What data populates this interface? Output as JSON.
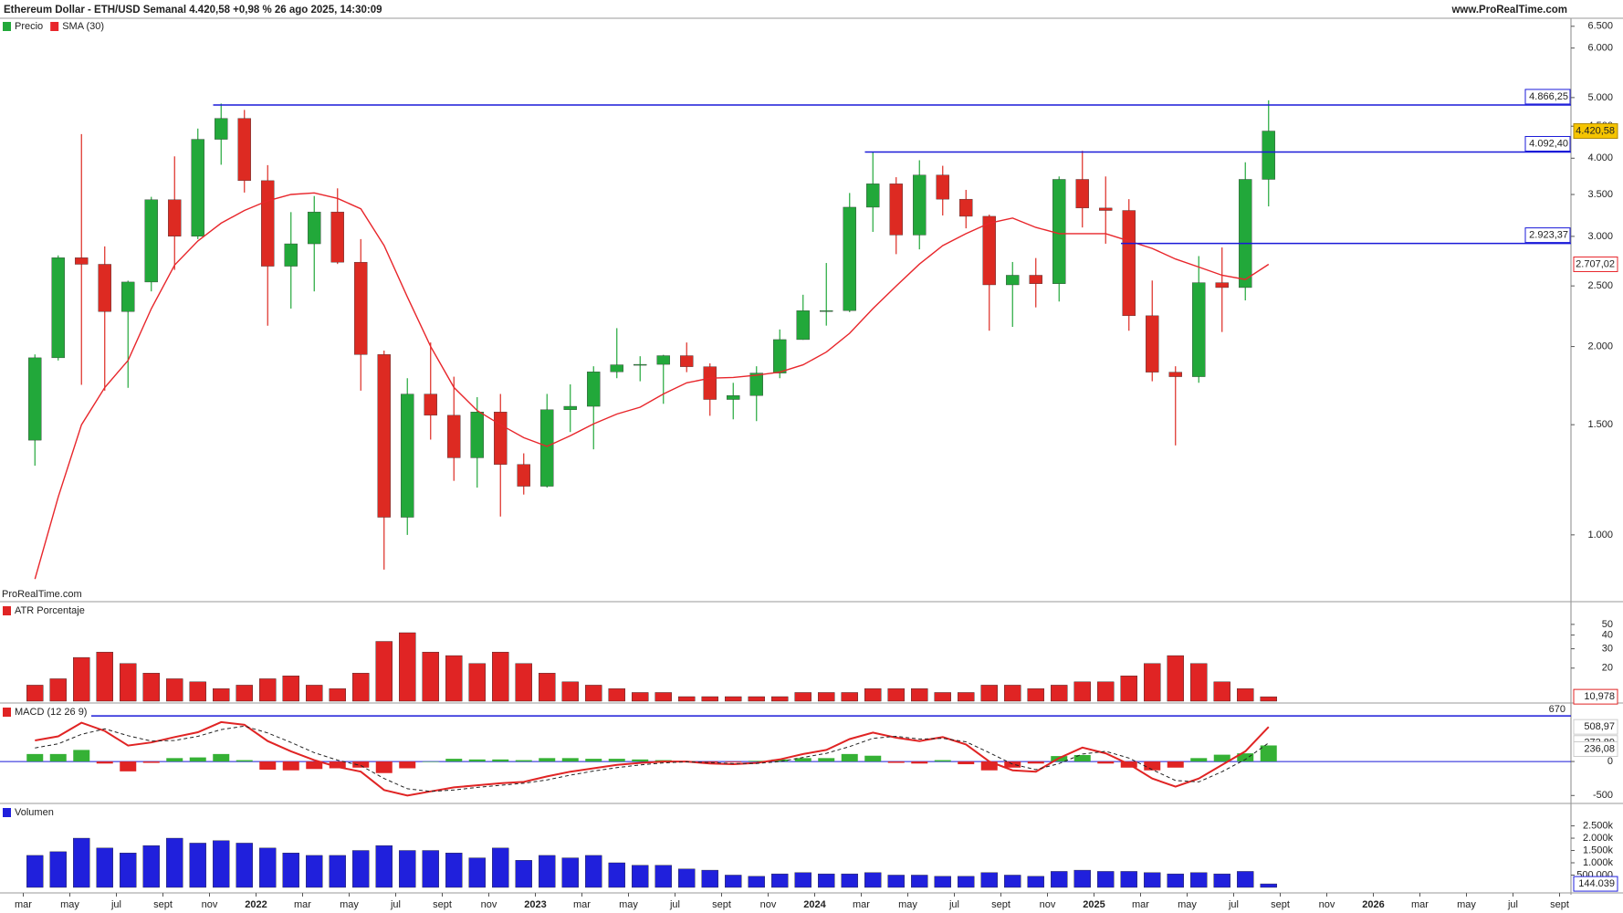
{
  "chart_data": [
    {
      "type": "candlestick",
      "title": "Ethereum Dollar - ETH/USD Semanal 4.420,58 +0,98 % 26 ago 2025, 14:30:09",
      "source": "www.ProRealTime.com",
      "watermark": "ProRealTime.com",
      "name": "Precio",
      "log_scale": true,
      "up_color": "#22a83a",
      "down_color": "#dd2a22",
      "categories": [
        "mar",
        null,
        "may",
        null,
        "jul",
        null,
        "sept",
        null,
        "nov",
        null,
        "2022",
        null,
        "mar",
        null,
        "may",
        null,
        "jul",
        null,
        "sept",
        null,
        "nov",
        null,
        "2023",
        null,
        "mar",
        null,
        "may",
        null,
        "jul",
        null,
        "sept",
        null,
        "nov",
        null,
        "2024",
        null,
        "mar",
        null,
        "may",
        null,
        "jul",
        null,
        "sept",
        null,
        "nov",
        null,
        "2025",
        null,
        "mar",
        null,
        "may",
        null,
        "jul",
        null,
        "sept",
        null,
        "nov",
        null,
        "2026",
        null,
        "mar",
        null,
        "may",
        null,
        "jul",
        null,
        "sept"
      ],
      "open": [
        1417,
        1919,
        2773,
        2707,
        2275,
        2536,
        3433,
        3001,
        4288,
        4631,
        3683,
        2688,
        2919,
        3282,
        2728,
        1942,
        1067,
        1679,
        1553,
        1328,
        1572,
        1296,
        1196,
        1585,
        1605,
        1822,
        1870,
        1873,
        1934,
        1857,
        1646,
        1670,
        1814,
        2052,
        2282,
        2283,
        3340,
        3640,
        3015,
        3760,
        3440,
        3230,
        2510,
        2600,
        2520,
        3700,
        3330,
        3300,
        2240,
        1820,
        1790,
        2530,
        2485,
        3700,
        null,
        null,
        null,
        null,
        null,
        null,
        null,
        null,
        null,
        null,
        null,
        null,
        null
      ],
      "high": [
        1943,
        2797,
        4372,
        2891,
        2549,
        3470,
        4027,
        4461,
        4891,
        4778,
        3900,
        3280,
        3480,
        3580,
        2970,
        1970,
        1780,
        2030,
        1790,
        1660,
        1680,
        1350,
        1680,
        1740,
        1860,
        2140,
        1930,
        1940,
        2030,
        1880,
        1750,
        1860,
        2130,
        2420,
        2720,
        3520,
        4090,
        3730,
        3970,
        3890,
        3560,
        3250,
        2730,
        2770,
        3740,
        4110,
        3740,
        3440,
        2550,
        1860,
        2790,
        2880,
        3940,
        4950,
        null,
        null,
        null,
        null,
        null,
        null,
        null,
        null,
        null,
        null,
        null,
        null,
        null
      ],
      "low": [
        1290,
        1900,
        1737,
        1700,
        1718,
        2450,
        2652,
        2970,
        3905,
        3525,
        2159,
        2300,
        2450,
        2710,
        1700,
        880,
        1000,
        1420,
        1220,
        1190,
        1070,
        1160,
        1190,
        1460,
        1370,
        1780,
        1760,
        1620,
        1820,
        1550,
        1530,
        1520,
        1780,
        2050,
        2160,
        2270,
        3050,
        2810,
        2860,
        3240,
        3090,
        2120,
        2150,
        2310,
        2360,
        3100,
        2920,
        2120,
        1760,
        1390,
        1750,
        2110,
        2370,
        3350,
        null,
        null,
        null,
        null,
        null,
        null,
        null,
        null,
        null,
        null,
        null,
        null,
        null
      ],
      "close": [
        1919,
        2773,
        2707,
        2275,
        2536,
        3433,
        3001,
        4288,
        4631,
        3683,
        2688,
        2919,
        3282,
        2728,
        1942,
        1067,
        1679,
        1553,
        1328,
        1572,
        1296,
        1196,
        1585,
        1605,
        1822,
        1870,
        1873,
        1934,
        1857,
        1646,
        1670,
        1814,
        2052,
        2282,
        2283,
        3340,
        3640,
        3015,
        3760,
        3440,
        3230,
        2510,
        2600,
        2520,
        3700,
        3330,
        3300,
        2240,
        1820,
        1790,
        2530,
        2485,
        3700,
        4420.58,
        null,
        null,
        null,
        null,
        null,
        null,
        null,
        null,
        null,
        null,
        null,
        null,
        null
      ],
      "last_label": "4.420,58",
      "last_label_color": "#f5c400",
      "overlay": {
        "name": "SMA (30)",
        "color": "#e8262b",
        "last_label": "2.707,02",
        "values": [
          850,
          1150,
          1500,
          1720,
          1900,
          2300,
          2700,
          2950,
          3150,
          3300,
          3420,
          3500,
          3520,
          3450,
          3320,
          2900,
          2400,
          2000,
          1720,
          1580,
          1500,
          1430,
          1385,
          1440,
          1505,
          1560,
          1600,
          1680,
          1750,
          1780,
          1785,
          1800,
          1820,
          1870,
          1960,
          2100,
          2300,
          2500,
          2710,
          2900,
          3030,
          3150,
          3210,
          3100,
          3030,
          3030,
          3030,
          2950,
          2870,
          2760,
          2680,
          2600,
          2560,
          2707.02,
          null,
          null,
          null,
          null,
          null,
          null,
          null,
          null,
          null,
          null,
          null,
          null,
          null
        ]
      },
      "levels": [
        {
          "value": 4866.25,
          "label": "4.866,25"
        },
        {
          "value": 4092.4,
          "label": "4.092,40"
        },
        {
          "value": 2923.37,
          "label": "2.923,37"
        }
      ],
      "level_color": "#1a1ad8",
      "ylim": [
        790,
        6650
      ],
      "yticks": [
        {
          "value": 6500,
          "label": "6.500"
        },
        {
          "value": 6000,
          "label": "6.000"
        },
        {
          "value": 5000,
          "label": "5.000"
        },
        {
          "value": 4500,
          "label": "4.500"
        },
        {
          "value": 4000,
          "label": "4.000"
        },
        {
          "value": 3500,
          "label": "3.500"
        },
        {
          "value": 3000,
          "label": "3.000"
        },
        {
          "value": 2500,
          "label": "2.500"
        },
        {
          "value": 2000,
          "label": "2.000"
        },
        {
          "value": 1500,
          "label": "1.500"
        },
        {
          "value": 1000,
          "label": "1.000"
        }
      ]
    },
    {
      "type": "bar",
      "title": "ATR Porcentaje",
      "log_scale": true,
      "color": "#e02424",
      "values": [
        14,
        16,
        25,
        28,
        22,
        18,
        16,
        15,
        13,
        14,
        16,
        17,
        14,
        13,
        18,
        35,
        42,
        28,
        26,
        22,
        28,
        22,
        18,
        15,
        14,
        13,
        12,
        12,
        11,
        11,
        11,
        11,
        11,
        12,
        12,
        12,
        13,
        13,
        13,
        12,
        12,
        14,
        14,
        13,
        14,
        15,
        15,
        17,
        22,
        26,
        22,
        15,
        13,
        10.978,
        null,
        null,
        null,
        null,
        null,
        null,
        null,
        null,
        null,
        null,
        null,
        null,
        null
      ],
      "last_label": "10,978",
      "ylim": [
        10,
        76
      ],
      "yticks": [
        50,
        40,
        30,
        20
      ]
    },
    {
      "type": "macd",
      "title": "MACD (12 26 9)",
      "baseline_color": "#1a1ad8",
      "levels": [
        670
      ],
      "level_color": "#1a1ad8",
      "series": [
        {
          "style": "histogram",
          "color": "#35b135",
          "negative_color": "#e02424",
          "last_label": "236,08",
          "values": [
            110,
            110,
            170,
            -30,
            -145,
            -20,
            50,
            60,
            110,
            20,
            -120,
            -130,
            -110,
            -100,
            -90,
            -170,
            -100,
            0,
            40,
            30,
            30,
            20,
            50,
            50,
            40,
            40,
            30,
            20,
            5,
            -15,
            -10,
            10,
            30,
            50,
            50,
            110,
            85,
            -20,
            -30,
            20,
            -40,
            -130,
            -90,
            -30,
            80,
            95,
            -30,
            -90,
            -130,
            -90,
            50,
            100,
            120,
            236.08,
            null,
            null,
            null,
            null,
            null,
            null,
            null,
            null,
            null,
            null,
            null,
            null,
            null
          ]
        },
        {
          "style": "line",
          "color": "#e02424",
          "last_label": "508,97",
          "values": [
            310,
            370,
            570,
            450,
            235,
            280,
            360,
            430,
            580,
            540,
            300,
            150,
            20,
            -80,
            -150,
            -420,
            -500,
            -440,
            -380,
            -350,
            -320,
            -300,
            -220,
            -150,
            -100,
            -50,
            -20,
            0,
            0,
            -30,
            -40,
            -20,
            30,
            110,
            170,
            330,
            425,
            350,
            300,
            360,
            250,
            0,
            -130,
            -150,
            50,
            205,
            120,
            -40,
            -250,
            -370,
            -250,
            -50,
            150,
            508.97,
            null,
            null,
            null,
            null,
            null,
            null,
            null,
            null,
            null,
            null,
            null,
            null,
            null
          ]
        },
        {
          "style": "dashed",
          "color": "#222222",
          "last_label": "272,89",
          "values": [
            200,
            260,
            400,
            480,
            380,
            300,
            310,
            370,
            470,
            520,
            420,
            280,
            130,
            20,
            -60,
            -250,
            -400,
            -440,
            -420,
            -380,
            -350,
            -320,
            -270,
            -200,
            -140,
            -90,
            -50,
            -20,
            -5,
            -15,
            -30,
            -30,
            0,
            60,
            120,
            220,
            340,
            370,
            330,
            340,
            290,
            130,
            -40,
            -120,
            -30,
            110,
            150,
            50,
            -120,
            -280,
            -300,
            -150,
            30,
            272.89,
            null,
            null,
            null,
            null,
            null,
            null,
            null,
            null,
            null,
            null,
            null,
            null,
            null
          ]
        }
      ],
      "ylim": [
        -590,
        820
      ],
      "yticks": [
        0,
        -500
      ]
    },
    {
      "type": "bar",
      "title": "Volumen",
      "color": "#2020dc",
      "values": [
        1300000,
        1450000,
        2000000,
        1600000,
        1400000,
        1700000,
        2000000,
        1800000,
        1900000,
        1800000,
        1600000,
        1400000,
        1300000,
        1300000,
        1500000,
        1700000,
        1500000,
        1500000,
        1400000,
        1200000,
        1600000,
        1100000,
        1300000,
        1200000,
        1300000,
        1000000,
        900000,
        900000,
        750000,
        700000,
        500000,
        450000,
        550000,
        600000,
        550000,
        550000,
        600000,
        500000,
        500000,
        450000,
        450000,
        600000,
        500000,
        450000,
        650000,
        700000,
        650000,
        650000,
        600000,
        550000,
        600000,
        550000,
        650000,
        144039,
        null,
        null,
        null,
        null,
        null,
        null,
        null,
        null,
        null,
        null,
        null,
        null,
        null
      ],
      "last_label": "144.039",
      "ylim": [
        -150000,
        3300000
      ],
      "yticks": [
        {
          "value": 2500000,
          "label": "2.500k"
        },
        {
          "value": 2000000,
          "label": "2.000k"
        },
        {
          "value": 1500000,
          "label": "1.500k"
        },
        {
          "value": 1000000,
          "label": "1.000k"
        },
        {
          "value": 500000,
          "label": "500.000"
        }
      ]
    }
  ]
}
